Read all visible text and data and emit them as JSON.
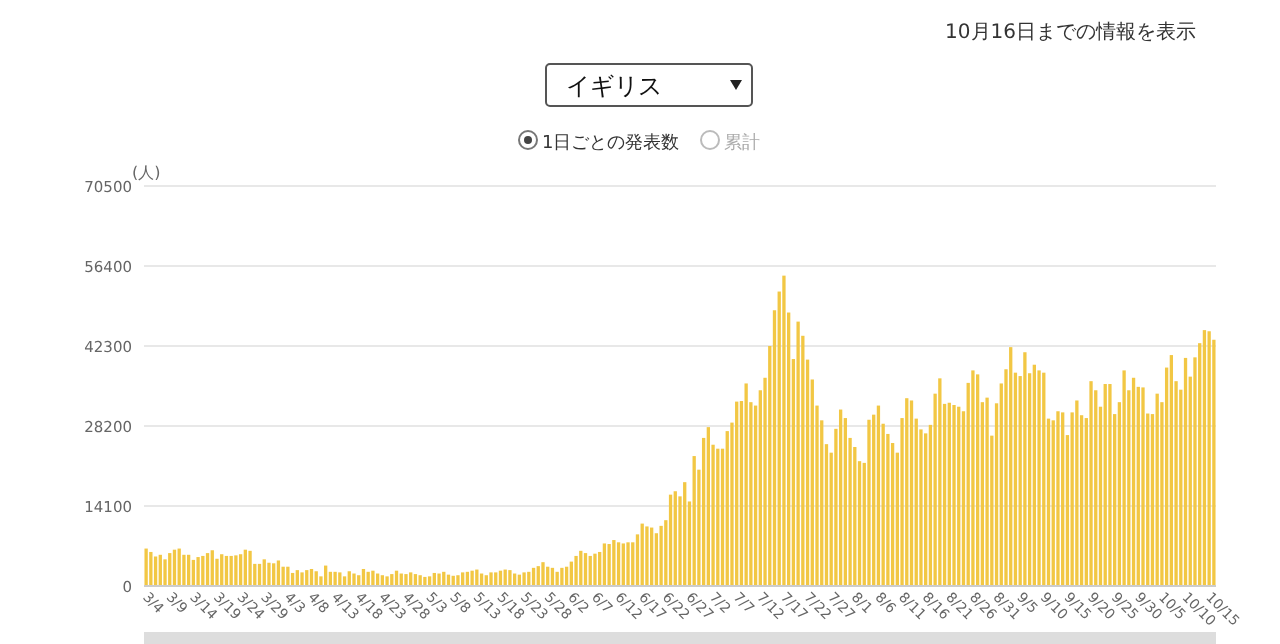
{
  "chart_data": {
    "type": "bar",
    "title": "イギリス",
    "subtitle": "10月16日までの情報を表示",
    "ylabel": "(人)",
    "annotations": [
      "1日ごとの発表数",
      "累計"
    ],
    "categories": [
      "3/4",
      null,
      null,
      null,
      null,
      "3/9",
      null,
      null,
      null,
      null,
      "3/14",
      null,
      null,
      null,
      null,
      "3/19",
      null,
      null,
      null,
      null,
      "3/24",
      null,
      null,
      null,
      null,
      "3/29",
      null,
      null,
      null,
      null,
      "4/3",
      null,
      null,
      null,
      null,
      "4/8",
      null,
      null,
      null,
      null,
      "4/13",
      null,
      null,
      null,
      null,
      "4/18",
      null,
      null,
      null,
      null,
      "4/23",
      null,
      null,
      null,
      null,
      "4/28",
      null,
      null,
      null,
      null,
      "5/3",
      null,
      null,
      null,
      null,
      "5/8",
      null,
      null,
      null,
      null,
      "5/13",
      null,
      null,
      null,
      null,
      "5/18",
      null,
      null,
      null,
      null,
      "5/23",
      null,
      null,
      null,
      null,
      "5/28",
      null,
      null,
      null,
      null,
      "6/2",
      null,
      null,
      null,
      null,
      "6/7",
      null,
      null,
      null,
      null,
      "6/12",
      null,
      null,
      null,
      null,
      "6/17",
      null,
      null,
      null,
      null,
      "6/22",
      null,
      null,
      null,
      null,
      "6/27",
      null,
      null,
      null,
      null,
      "7/2",
      null,
      null,
      null,
      null,
      "7/7",
      null,
      null,
      null,
      null,
      "7/12",
      null,
      null,
      null,
      null,
      "7/17",
      null,
      null,
      null,
      null,
      "7/22",
      null,
      null,
      null,
      null,
      "7/27",
      null,
      null,
      null,
      null,
      "8/1",
      null,
      null,
      null,
      null,
      "8/6",
      null,
      null,
      null,
      null,
      "8/11",
      null,
      null,
      null,
      null,
      "8/16",
      null,
      null,
      null,
      null,
      "8/21",
      null,
      null,
      null,
      null,
      "8/26",
      null,
      null,
      null,
      null,
      "8/31",
      null,
      null,
      null,
      null,
      "9/5",
      null,
      null,
      null,
      null,
      "9/10",
      null,
      null,
      null,
      null,
      "9/15",
      null,
      null,
      null,
      null,
      "9/20",
      null,
      null,
      null,
      null,
      "9/25",
      null,
      null,
      null,
      null,
      "9/30",
      null,
      null,
      null,
      null,
      "10/5",
      null,
      null,
      null,
      null,
      "10/10",
      null,
      null,
      null,
      null,
      "10/15",
      null
    ],
    "values": [
      6600,
      6000,
      5200,
      5500,
      4700,
      5800,
      6400,
      6600,
      5500,
      5500,
      4600,
      5100,
      5300,
      5800,
      6300,
      4800,
      5600,
      5300,
      5300,
      5400,
      5600,
      6400,
      6200,
      3900,
      3900,
      4700,
      4100,
      4000,
      4500,
      3400,
      3400,
      2300,
      2800,
      2400,
      2800,
      3000,
      2600,
      1700,
      3600,
      2500,
      2500,
      2400,
      1700,
      2600,
      2200,
      1900,
      3000,
      2500,
      2700,
      2200,
      1900,
      1700,
      2100,
      2700,
      2200,
      2100,
      2400,
      2100,
      1900,
      1600,
      1700,
      2300,
      2200,
      2500,
      2000,
      1800,
      1900,
      2400,
      2500,
      2700,
      2900,
      2200,
      1900,
      2400,
      2400,
      2700,
      2900,
      2800,
      2200,
      2000,
      2400,
      2500,
      3200,
      3500,
      4200,
      3400,
      3200,
      2500,
      3200,
      3400,
      4300,
      5300,
      6200,
      5800,
      5300,
      5700,
      6000,
      7500,
      7400,
      8100,
      7700,
      7500,
      7700,
      7700,
      9100,
      11000,
      10500,
      10300,
      9300,
      10600,
      11600,
      16100,
      16700,
      15800,
      18300,
      14900,
      22900,
      20500,
      26100,
      28000,
      24900,
      24200,
      24200,
      27300,
      28800,
      32500,
      32600,
      35700,
      32400,
      31800,
      34500,
      36700,
      42300,
      48600,
      51900,
      54700,
      48200,
      40000,
      46600,
      44100,
      39900,
      36400,
      31800,
      29200,
      25000,
      23500,
      27700,
      31100,
      29600,
      26100,
      24500,
      22000,
      21700,
      29300,
      30200,
      31800,
      28600,
      26800,
      25200,
      23500,
      29600,
      33100,
      32700,
      29500,
      27600,
      26900,
      28400,
      33900,
      36600,
      32100,
      32300,
      31900,
      31600,
      30800,
      35800,
      38000,
      37300,
      32400,
      33200,
      26500,
      32200,
      35700,
      38200,
      42100,
      37600,
      37000,
      41200,
      37500,
      39000,
      38000,
      37600,
      29500,
      29200,
      30800,
      30600,
      26600,
      30600,
      32700,
      30100,
      29600,
      36100,
      34500,
      31600,
      35600,
      35600,
      30300,
      32400,
      38000,
      34500,
      36700,
      35100,
      35000,
      30400,
      30300,
      33900,
      32400,
      38500,
      40700,
      36100,
      34600,
      40200,
      36900,
      40300,
      42800,
      45100,
      44900,
      43400
    ],
    "color": "#f2c744",
    "ylim": [
      0,
      70500
    ],
    "yticks": [
      0,
      14100,
      28200,
      42300,
      56400,
      70500
    ],
    "grid": "y"
  }
}
